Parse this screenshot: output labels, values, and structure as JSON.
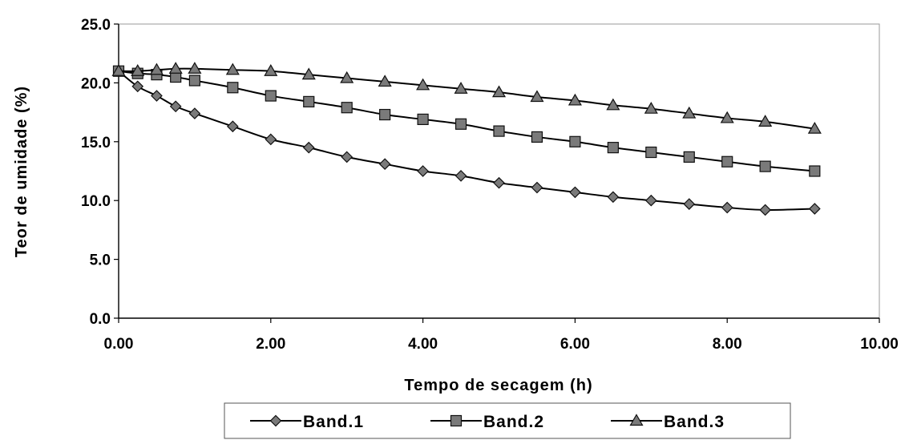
{
  "chart_data": {
    "type": "line",
    "title": "",
    "xlabel": "Tempo de secagem (h)",
    "ylabel": "Teor de umidade (%)",
    "xlim": [
      0,
      10
    ],
    "ylim": [
      0,
      25
    ],
    "xticks": [
      "0.00",
      "2.00",
      "4.00",
      "6.00",
      "8.00",
      "10.00"
    ],
    "yticks": [
      "0.0",
      "5.0",
      "10.0",
      "15.0",
      "20.0",
      "25.0"
    ],
    "grid": false,
    "legend_position": "bottom",
    "x": [
      0,
      0.25,
      0.5,
      0.75,
      1,
      1.5,
      2,
      2.5,
      3,
      3.5,
      4,
      4.5,
      5,
      5.5,
      6,
      6.5,
      7,
      7.5,
      8,
      8.5,
      9.15
    ],
    "series": [
      {
        "name": "Band.1",
        "marker": "diamond",
        "values": [
          21.0,
          19.7,
          18.9,
          18.0,
          17.4,
          16.3,
          15.2,
          14.5,
          13.7,
          13.1,
          12.5,
          12.1,
          11.5,
          11.1,
          10.7,
          10.3,
          10.0,
          9.7,
          9.4,
          9.2,
          9.3
        ]
      },
      {
        "name": "Band.2",
        "marker": "square",
        "values": [
          21.0,
          20.8,
          20.7,
          20.5,
          20.2,
          19.6,
          18.9,
          18.4,
          17.9,
          17.3,
          16.9,
          16.5,
          15.9,
          15.4,
          15.0,
          14.5,
          14.1,
          13.7,
          13.3,
          12.9,
          12.5
        ]
      },
      {
        "name": "Band.3",
        "marker": "triangle",
        "values": [
          21.0,
          21.0,
          21.1,
          21.2,
          21.2,
          21.1,
          21.0,
          20.7,
          20.4,
          20.1,
          19.8,
          19.5,
          19.2,
          18.8,
          18.5,
          18.1,
          17.8,
          17.4,
          17.0,
          16.7,
          16.1
        ]
      }
    ],
    "colors": {
      "line": "#000000",
      "marker": "#7a7a7a",
      "frame": "#9a9a9a"
    }
  }
}
